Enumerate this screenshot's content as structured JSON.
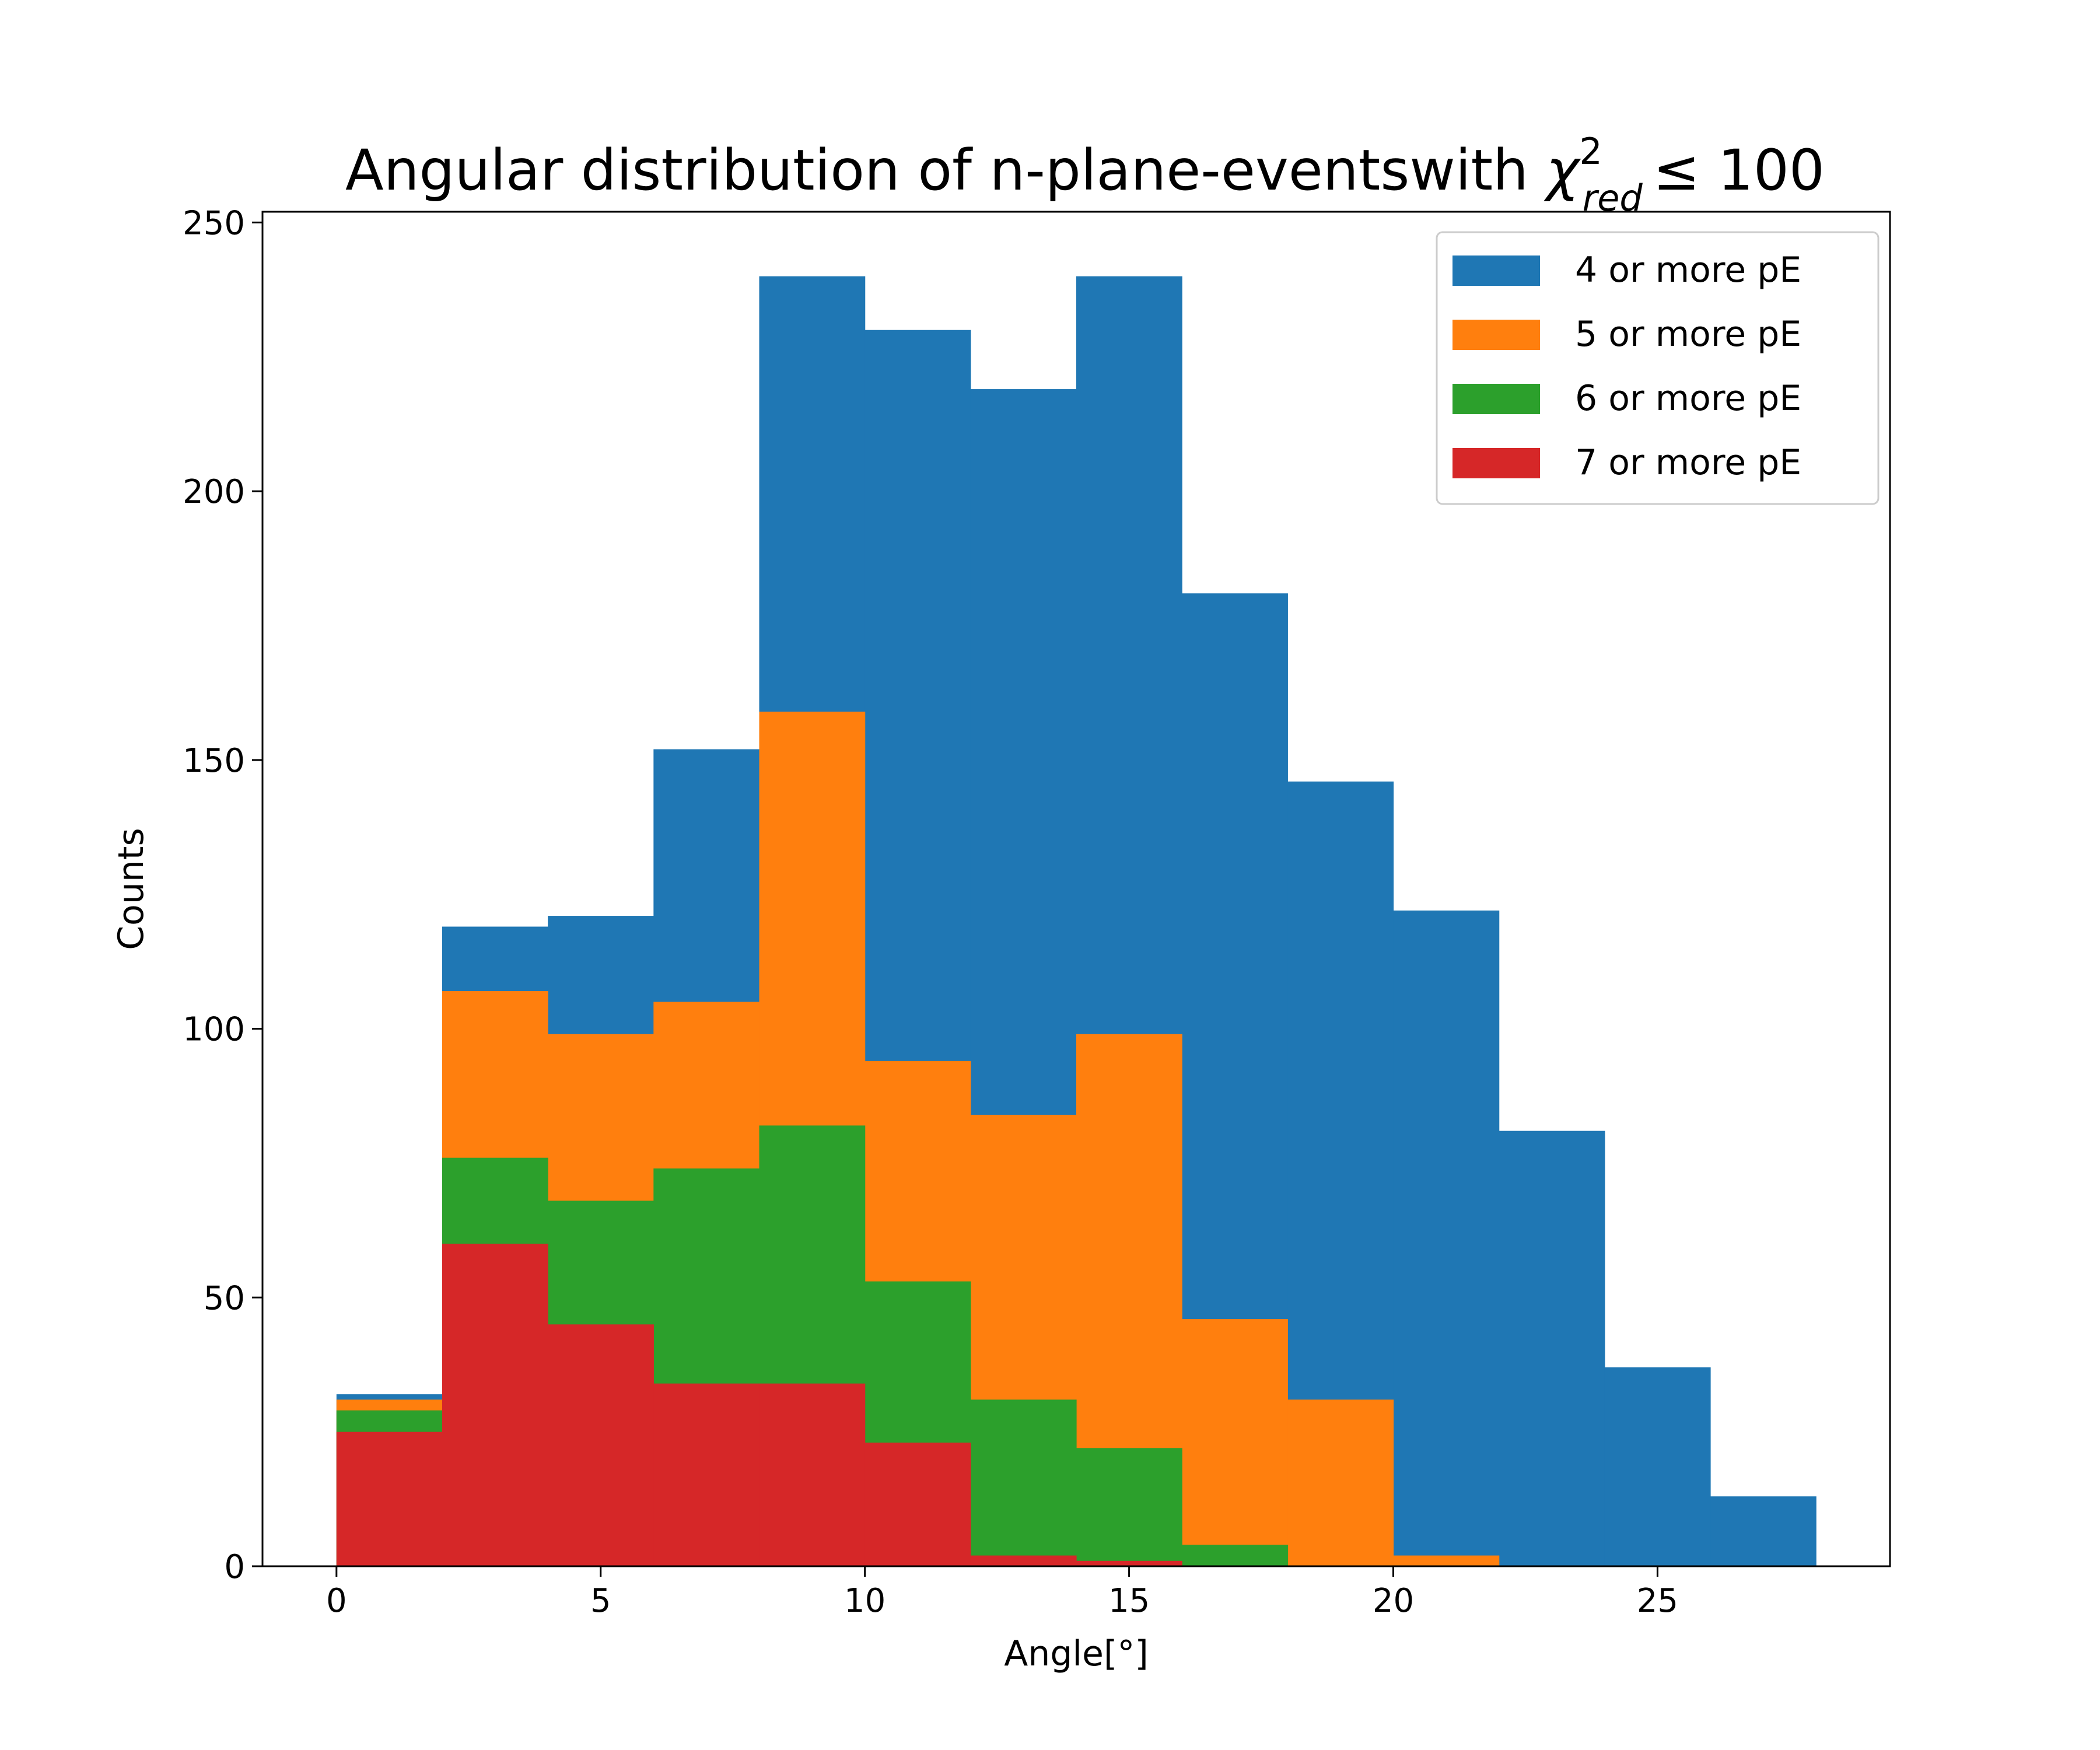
{
  "chart_data": {
    "type": "bar",
    "title_main": "Angular distribution of n-plane-eventswith ",
    "title_chi": "χ",
    "title_sup": "2",
    "title_sub": "red",
    "title_rest": "≤ 100",
    "xlabel": "Angle[°]",
    "ylabel": "Counts",
    "xlim": [
      -1.4,
      29.4
    ],
    "ylim": [
      0,
      252
    ],
    "xticks": [
      0,
      5,
      10,
      15,
      20,
      25
    ],
    "yticks": [
      0,
      50,
      100,
      150,
      200,
      250
    ],
    "bin_edges": [
      0,
      2,
      4,
      6,
      8,
      10,
      12,
      14,
      16,
      18,
      20,
      22,
      24,
      26,
      28
    ],
    "legend_position": "top-right",
    "series": [
      {
        "name": "4 or more pE",
        "color": "#1f77b4",
        "values": [
          32,
          119,
          121,
          152,
          240,
          230,
          219,
          240,
          181,
          146,
          122,
          81,
          37,
          13
        ]
      },
      {
        "name": "5 or more pE",
        "color": "#ff7f0e",
        "values": [
          31,
          107,
          99,
          105,
          159,
          94,
          84,
          99,
          46,
          31,
          2,
          0,
          0,
          0
        ]
      },
      {
        "name": "6 or more pE",
        "color": "#2ca02c",
        "values": [
          29,
          76,
          68,
          74,
          82,
          53,
          31,
          22,
          4,
          0,
          0,
          0,
          0,
          0
        ]
      },
      {
        "name": "7 or more pE",
        "color": "#d62728",
        "values": [
          25,
          60,
          45,
          34,
          34,
          23,
          2,
          1,
          0,
          0,
          0,
          0,
          0,
          0
        ]
      }
    ]
  }
}
